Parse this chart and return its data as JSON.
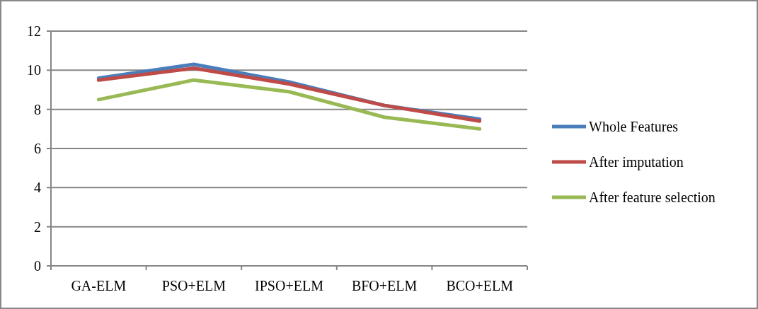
{
  "chart_data": {
    "type": "line",
    "categories": [
      "GA-ELM",
      "PSO+ELM",
      "IPSO+ELM",
      "BFO+ELM",
      "BCO+ELM"
    ],
    "series": [
      {
        "name": "Whole Features",
        "color": "#4a7ebb",
        "values": [
          9.6,
          10.3,
          9.4,
          8.2,
          7.5
        ]
      },
      {
        "name": "After imputation",
        "color": "#be4b48",
        "values": [
          9.5,
          10.1,
          9.3,
          8.2,
          7.4
        ]
      },
      {
        "name": "After feature selection",
        "color": "#98b954",
        "values": [
          8.5,
          9.5,
          8.9,
          7.6,
          7.0
        ]
      }
    ],
    "ylim": [
      0,
      12
    ],
    "yticks": [
      0,
      2,
      4,
      6,
      8,
      10,
      12
    ],
    "grid": "y",
    "legend": "right",
    "marker": "none",
    "line_style": "solid"
  }
}
